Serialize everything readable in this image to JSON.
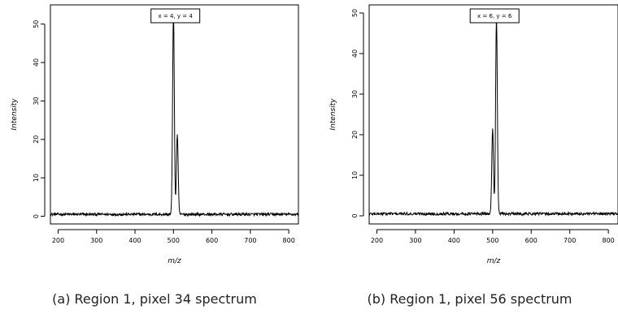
{
  "chart_data": [
    {
      "type": "line",
      "xlabel": "m/z",
      "ylabel": "Intensity",
      "xlim": [
        180,
        825
      ],
      "ylim": [
        -2,
        55
      ],
      "xticks": [
        200,
        300,
        400,
        500,
        600,
        700,
        800
      ],
      "yticks": [
        0,
        10,
        20,
        30,
        40,
        50
      ],
      "annotation": "x = 4, y = 4",
      "caption": "(a) Region 1, pixel 34 spectrum",
      "baseline": 0.5,
      "peaks": [
        {
          "mz": 500,
          "intensity": 53
        },
        {
          "mz": 510,
          "intensity": 21
        }
      ]
    },
    {
      "type": "line",
      "xlabel": "m/z",
      "ylabel": "Intensity",
      "xlim": [
        180,
        825
      ],
      "ylim": [
        -2,
        52
      ],
      "xticks": [
        200,
        300,
        400,
        500,
        600,
        700,
        800
      ],
      "yticks": [
        0,
        10,
        20,
        30,
        40,
        50
      ],
      "annotation": "x = 6, y = 6",
      "caption": "(b) Region 1, pixel 56 spectrum",
      "baseline": 0.5,
      "peaks": [
        {
          "mz": 500,
          "intensity": 21
        },
        {
          "mz": 510,
          "intensity": 49
        }
      ]
    }
  ]
}
